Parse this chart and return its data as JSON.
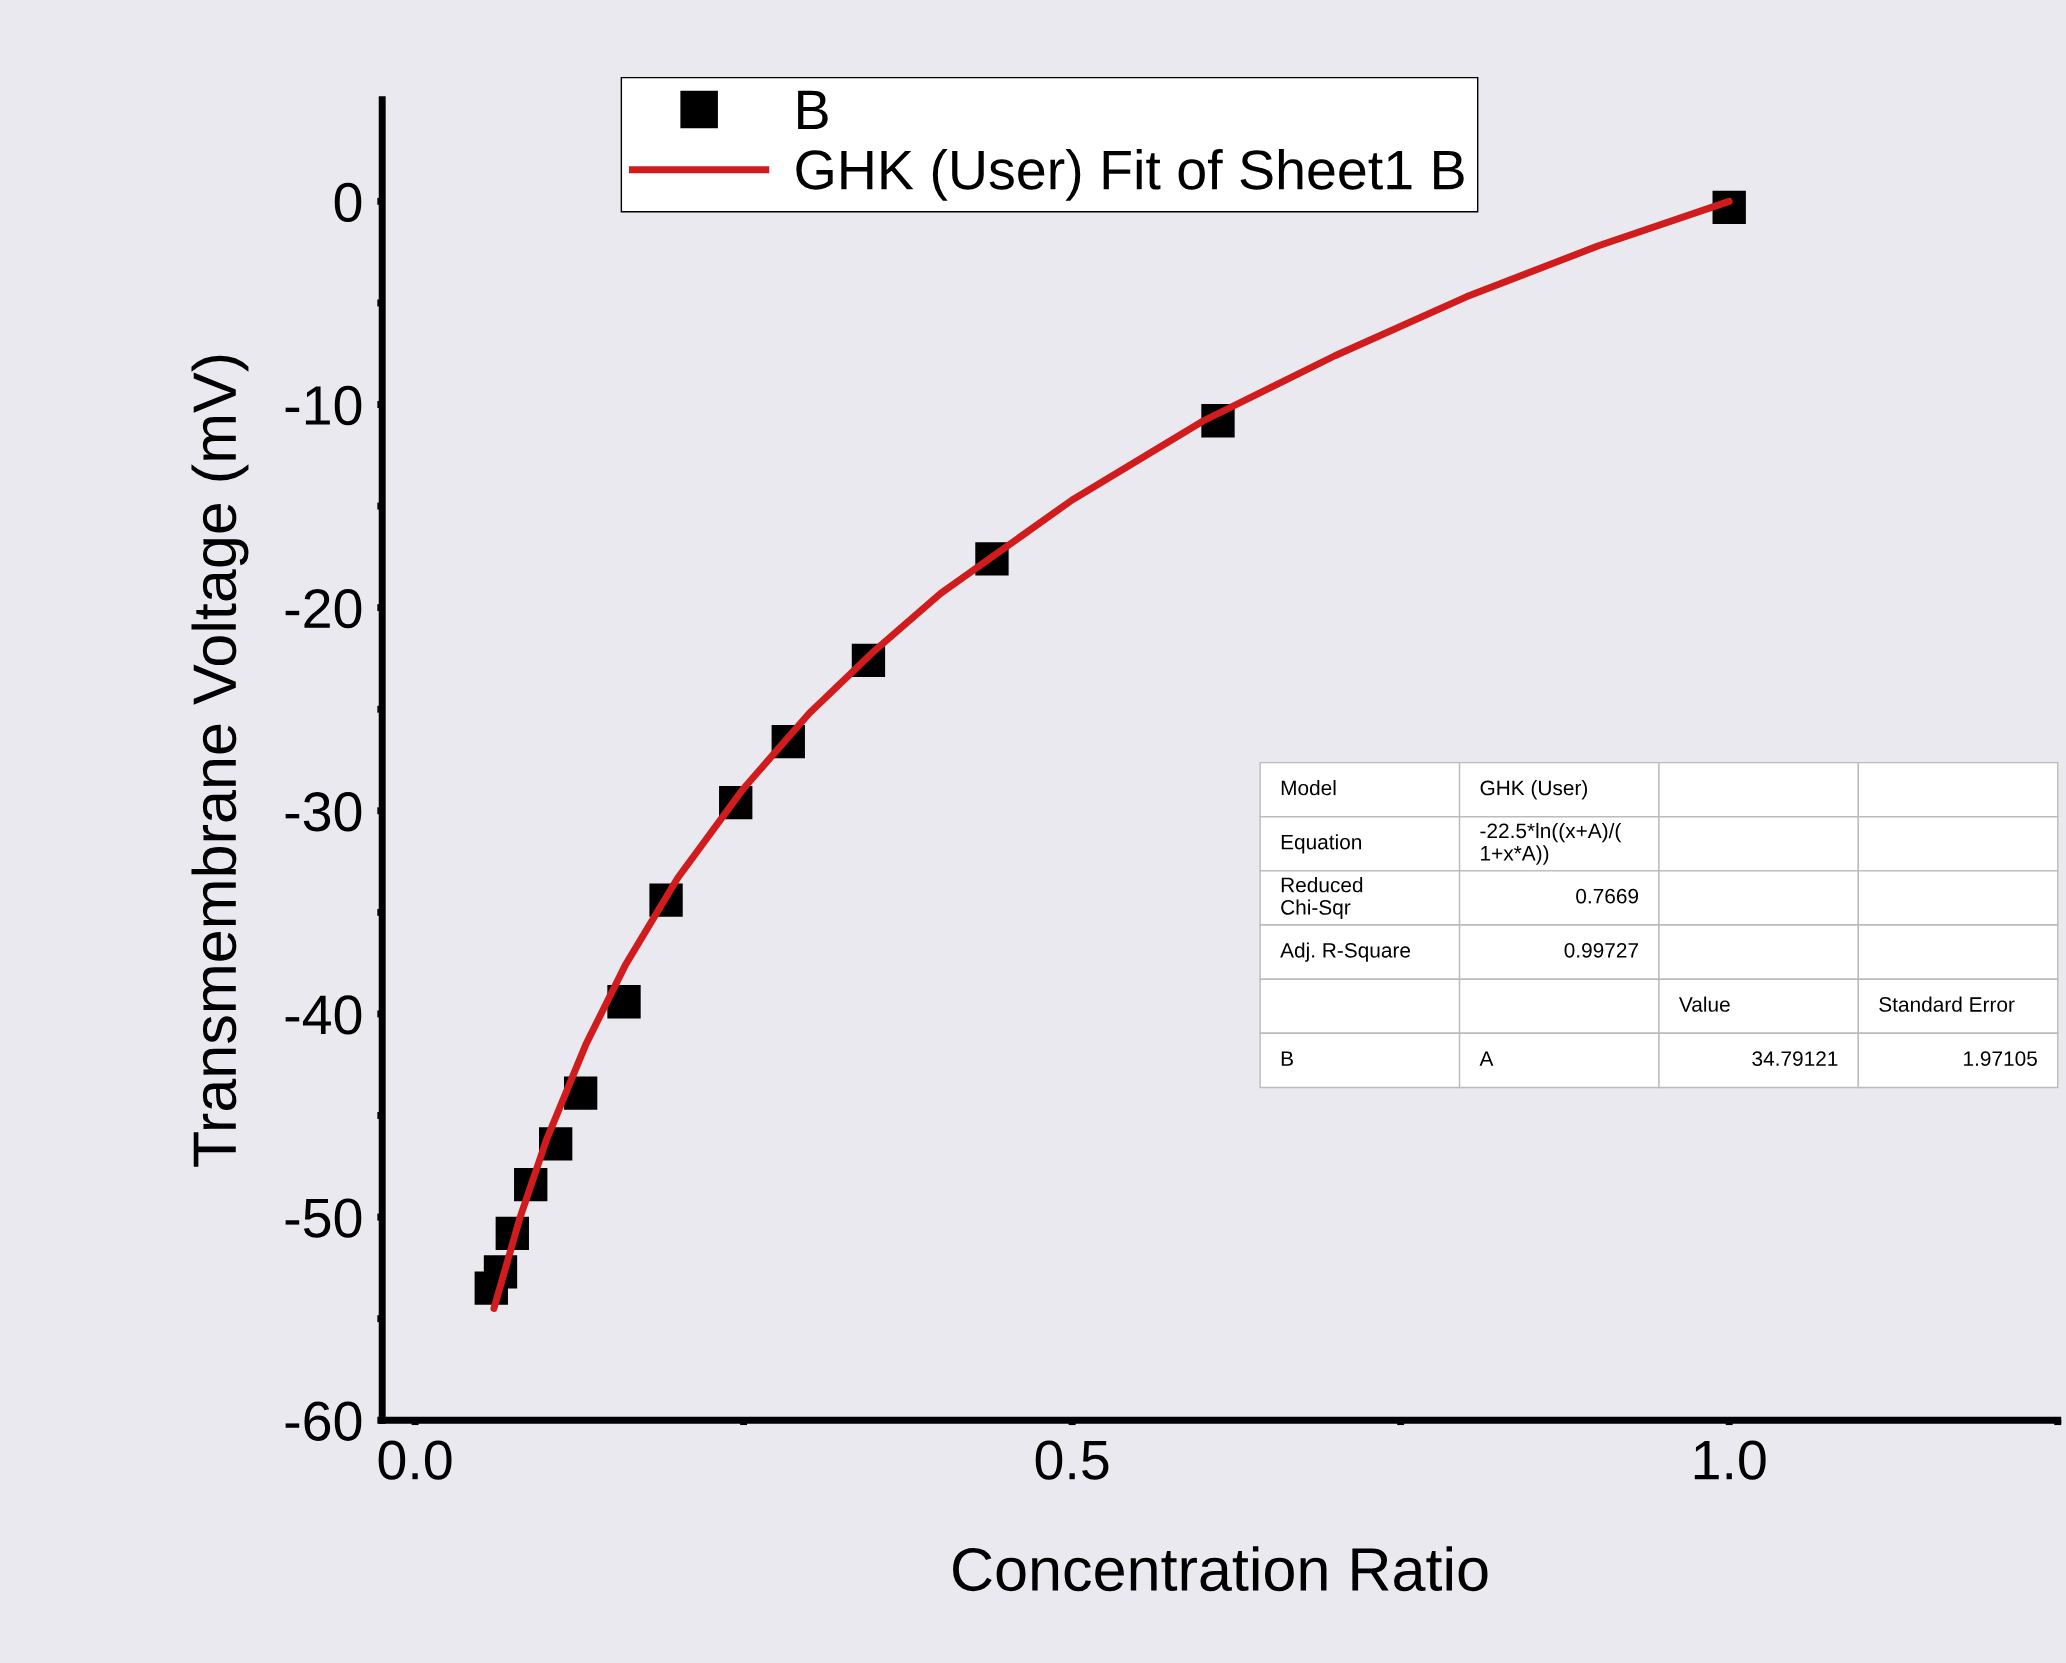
{
  "chart_data": {
    "type": "scatter",
    "xlabel": "Concentration Ratio",
    "ylabel": "Transmembrane Voltage (mV)",
    "xlim": [
      -0.025,
      1.25
    ],
    "ylim": [
      -60,
      5
    ],
    "xticks": [
      {
        "value": 0,
        "label": "0.0"
      },
      {
        "value": 0.25,
        "label": null
      },
      {
        "value": 0.5,
        "label": "0.5"
      },
      {
        "value": 0.75,
        "label": null
      },
      {
        "value": 1.0,
        "label": "1.0"
      },
      {
        "value": 1.25,
        "label": null
      }
    ],
    "yticks": [
      -60,
      {
        "value": -55,
        "label": null
      },
      -50,
      {
        "value": -45,
        "label": null
      },
      -40,
      {
        "value": -35,
        "label": null
      },
      -30,
      {
        "value": -25,
        "label": null
      },
      -20,
      {
        "value": -15,
        "label": null
      },
      -10,
      {
        "value": -5,
        "label": null
      },
      0
    ],
    "grid": false,
    "legend": "top",
    "series": [
      {
        "name": "B",
        "marker": "square",
        "color": "#000000",
        "x": [
          1.0,
          0.611,
          0.439,
          0.345,
          0.284,
          0.244,
          0.191,
          0.159,
          0.126,
          0.107,
          0.088,
          0.074,
          0.065,
          0.058
        ],
        "values": [
          -0.3,
          -10.8,
          -17.6,
          -22.6,
          -26.6,
          -29.6,
          -34.4,
          -39.4,
          -43.9,
          -46.4,
          -48.4,
          -50.8,
          -52.7,
          -53.5
        ]
      },
      {
        "name": "GHK (User) Fit of Sheet1 B",
        "type": "line",
        "marker": "none",
        "line_style": "solid",
        "color": "#d01c1c",
        "x": [
          0.06,
          0.08,
          0.1,
          0.13,
          0.16,
          0.2,
          0.25,
          0.3,
          0.35,
          0.4,
          0.5,
          0.6,
          0.7,
          0.8,
          0.9,
          1.0
        ],
        "values": [
          -54.5,
          -50.0,
          -46.2,
          -41.5,
          -37.6,
          -33.3,
          -28.9,
          -25.2,
          -22.1,
          -19.3,
          -14.7,
          -10.8,
          -7.6,
          -4.7,
          -2.2,
          0
        ]
      }
    ],
    "annotations": [
      "Model\tGHK (User)\t\t",
      "Equation\t-22.5*ln((x+A)/(\n1+x*A))\t\t",
      "Reduced\nChi-Sqr\t0.7669\t\t",
      "Adj. R-Square\t0.99727\t\t",
      "\t\tValue\tStandard Error",
      "B\tA\t34.79121\t1.97105"
    ]
  }
}
